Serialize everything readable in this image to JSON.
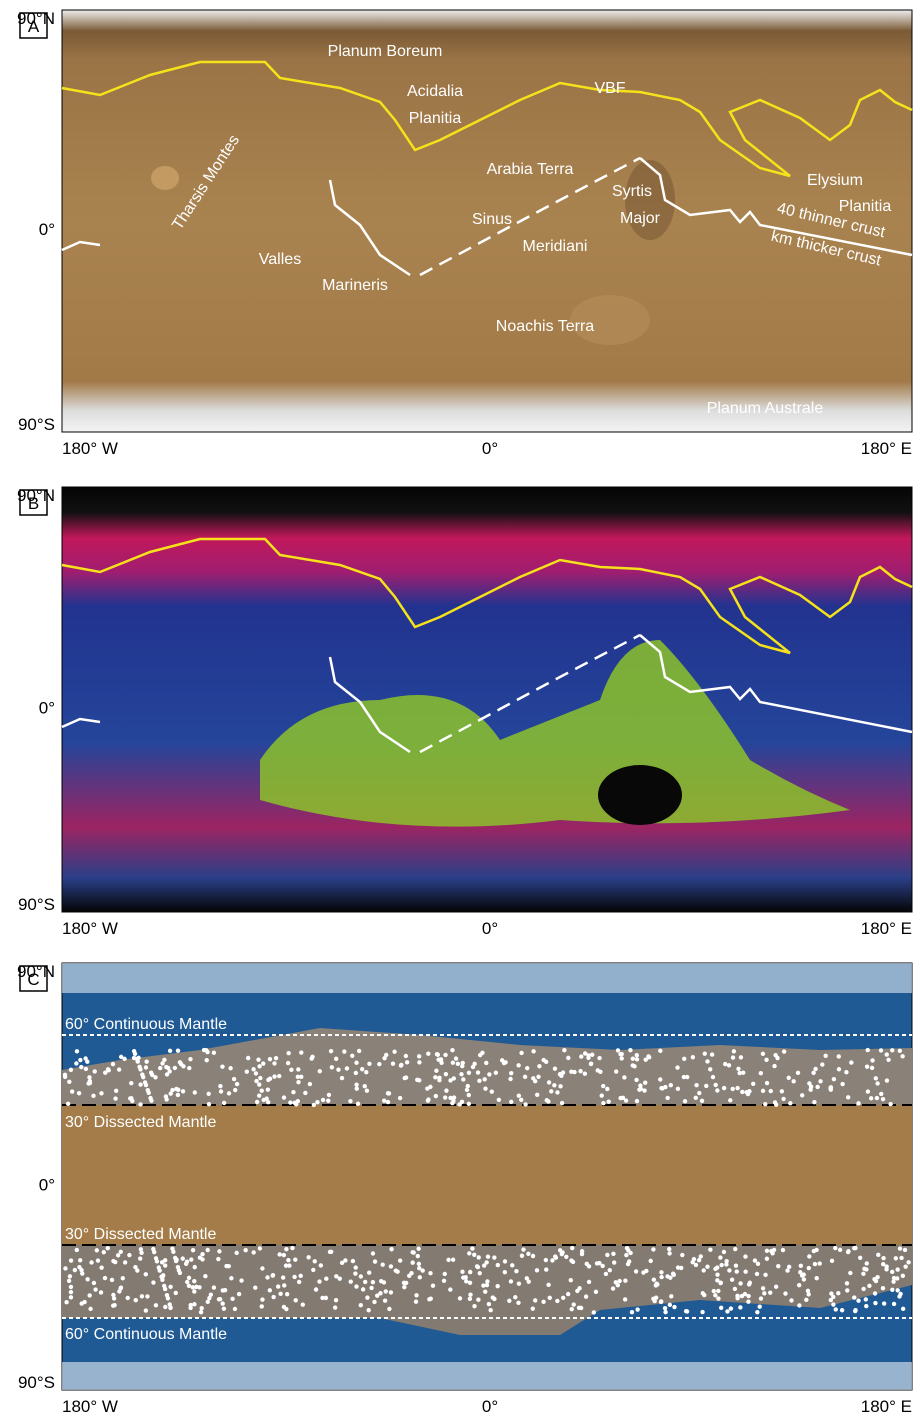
{
  "panels": [
    {
      "label": "A",
      "lat_labels": [
        "90°N",
        "0°",
        "90°S"
      ],
      "lon_labels": [
        "180° W",
        "0°",
        "180° E"
      ],
      "annotations": [
        "Planum Boreum",
        "Acidalia",
        "Planitia",
        "VBF",
        "Arabia Terra",
        "Tharsis Montes",
        "Syrtis",
        "Major",
        "Elysium",
        "Planitia",
        "Sinus",
        "Meridiani",
        "Valles",
        "Marineris",
        "Noachis Terra",
        "Planum Australe",
        "40  thinner crust",
        "km thicker crust"
      ]
    },
    {
      "label": "B",
      "lat_labels": [
        "90°N",
        "0°",
        "90°S"
      ],
      "lon_labels": [
        "180° W",
        "0°",
        "180° E"
      ]
    },
    {
      "label": "C",
      "lat_labels": [
        "90°N",
        "0°",
        "90°S"
      ],
      "lon_labels": [
        "180° W",
        "0°",
        "180° E"
      ],
      "annotations": [
        "60° Continuous Mantle",
        "30° Dissected Mantle",
        "30° Dissected Mantle",
        "60° Continuous Mantle"
      ]
    }
  ]
}
